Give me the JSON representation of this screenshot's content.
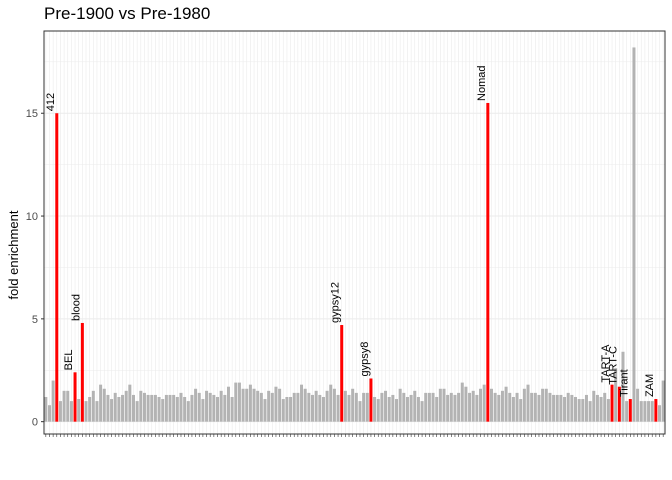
{
  "chart_data": {
    "type": "bar",
    "title": "Pre-1900 vs Pre-1980",
    "xlabel": "",
    "ylabel": "fold enrichment",
    "ylim": [
      -0.6,
      19.0
    ],
    "yticks": [
      0,
      5,
      10,
      15
    ],
    "ytick_labels": [
      "0",
      "5",
      "10",
      "15"
    ],
    "grid": true,
    "colors": {
      "background": "#ffffff",
      "grid": "#ebebeb",
      "panel_border": "#333333",
      "base_bar": "#b3b3b3",
      "highlight_bar": "#ff0000"
    },
    "values": [
      1.2,
      0.8,
      2.0,
      15.0,
      1.0,
      1.5,
      1.5,
      1.0,
      2.4,
      1.1,
      4.8,
      1.0,
      1.2,
      1.5,
      1.0,
      1.8,
      1.6,
      1.3,
      1.1,
      1.4,
      1.2,
      1.3,
      1.5,
      1.8,
      1.3,
      1.0,
      1.5,
      1.4,
      1.3,
      1.3,
      1.3,
      1.2,
      1.1,
      1.3,
      1.3,
      1.3,
      1.2,
      1.4,
      1.2,
      1.0,
      1.3,
      1.6,
      1.4,
      1.1,
      1.5,
      1.4,
      1.3,
      1.2,
      1.5,
      1.3,
      1.7,
      1.2,
      1.9,
      1.9,
      1.6,
      1.6,
      1.8,
      1.6,
      1.5,
      1.4,
      1.1,
      1.5,
      1.4,
      1.7,
      1.6,
      1.1,
      1.2,
      1.2,
      1.4,
      1.4,
      1.8,
      1.6,
      1.4,
      1.3,
      1.5,
      1.3,
      1.2,
      1.5,
      1.8,
      1.6,
      1.3,
      4.7,
      1.5,
      1.3,
      1.6,
      1.4,
      1.0,
      1.4,
      1.4,
      2.1,
      1.2,
      1.1,
      1.4,
      1.5,
      1.2,
      1.3,
      1.1,
      1.6,
      1.4,
      1.2,
      1.3,
      1.5,
      1.2,
      1.0,
      1.4,
      1.4,
      1.4,
      1.2,
      1.6,
      1.6,
      1.3,
      1.4,
      1.3,
      1.4,
      1.9,
      1.7,
      1.4,
      1.5,
      1.3,
      1.6,
      1.8,
      15.5,
      1.6,
      1.4,
      1.3,
      1.5,
      1.7,
      1.4,
      1.2,
      1.4,
      1.1,
      1.6,
      1.8,
      1.4,
      1.4,
      1.3,
      1.6,
      1.6,
      1.4,
      1.3,
      1.3,
      1.3,
      1.2,
      1.4,
      1.3,
      1.2,
      1.1,
      1.1,
      1.3,
      1.0,
      1.5,
      1.3,
      1.2,
      1.4,
      1.1,
      1.8,
      2.6,
      1.7,
      3.4,
      1.0,
      1.1,
      18.2,
      1.6,
      1.0,
      1.0,
      1.0,
      1.0,
      1.1,
      0.8,
      2.0
    ],
    "highlighted": [
      {
        "index": 3,
        "label": "412"
      },
      {
        "index": 8,
        "label": "BEL"
      },
      {
        "index": 10,
        "label": "blood"
      },
      {
        "index": 81,
        "label": "gypsy12"
      },
      {
        "index": 89,
        "label": "gypsy8"
      },
      {
        "index": 121,
        "label": "Nomad"
      },
      {
        "index": 155,
        "label": "TART-A"
      },
      {
        "index": 157,
        "label": "TART-C"
      },
      {
        "index": 160,
        "label": "Tirant"
      },
      {
        "index": 167,
        "label": "ZAM"
      }
    ]
  }
}
